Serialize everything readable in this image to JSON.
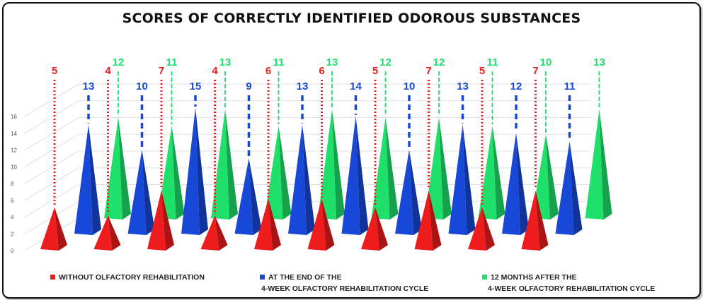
{
  "title": "SCORES OF CORRECTLY IDENTIFIED ODOROUS SUBSTANCES",
  "colors": {
    "red": "#ee1c1c",
    "blue": "#1848d8",
    "green": "#1fe06a"
  },
  "legend": [
    {
      "line1": "WITHOUT OLFACTORY REHABILITATION",
      "line2": "",
      "color": "#ee1c1c"
    },
    {
      "line1": "AT THE END OF THE",
      "line2": "4-WEEK OLFACTORY REHABILITATION CYCLE",
      "color": "#1848d8"
    },
    {
      "line1": "12 MONTHS AFTER THE",
      "line2": "4-WEEK OLFACTORY REHABILITATION CYCLE",
      "color": "#1fe06a"
    }
  ],
  "chart_data": {
    "type": "bar",
    "title": "SCORES OF CORRECTLY IDENTIFIED ODOROUS SUBSTANCES",
    "categories": [
      "",
      "",
      "",
      "",
      "",
      "",
      "",
      "",
      "",
      ""
    ],
    "series": [
      {
        "name": "WITHOUT OLFACTORY REHABILITATION",
        "color": "#ee1c1c",
        "values": [
          5,
          4,
          7,
          4,
          6,
          6,
          5,
          7,
          5,
          7
        ]
      },
      {
        "name": "AT THE END OF THE 4-WEEK OLFACTORY REHABILITATION CYCLE",
        "color": "#1848d8",
        "values": [
          13,
          10,
          15,
          9,
          13,
          14,
          10,
          13,
          12,
          11
        ]
      },
      {
        "name": "12 MONTHS AFTER THE 4-WEEK OLFACTORY REHABILITATION CYCLE",
        "color": "#1fe06a",
        "values": [
          12,
          11,
          13,
          11,
          13,
          12,
          12,
          11,
          10,
          13
        ]
      }
    ],
    "yticks": [
      "0",
      "2",
      "4",
      "6",
      "8",
      "10",
      "12",
      "14",
      "16"
    ],
    "ylim": [
      0,
      16
    ],
    "grid": true,
    "legend_position": "bottom",
    "mark_shape": "3d-pyramid"
  }
}
